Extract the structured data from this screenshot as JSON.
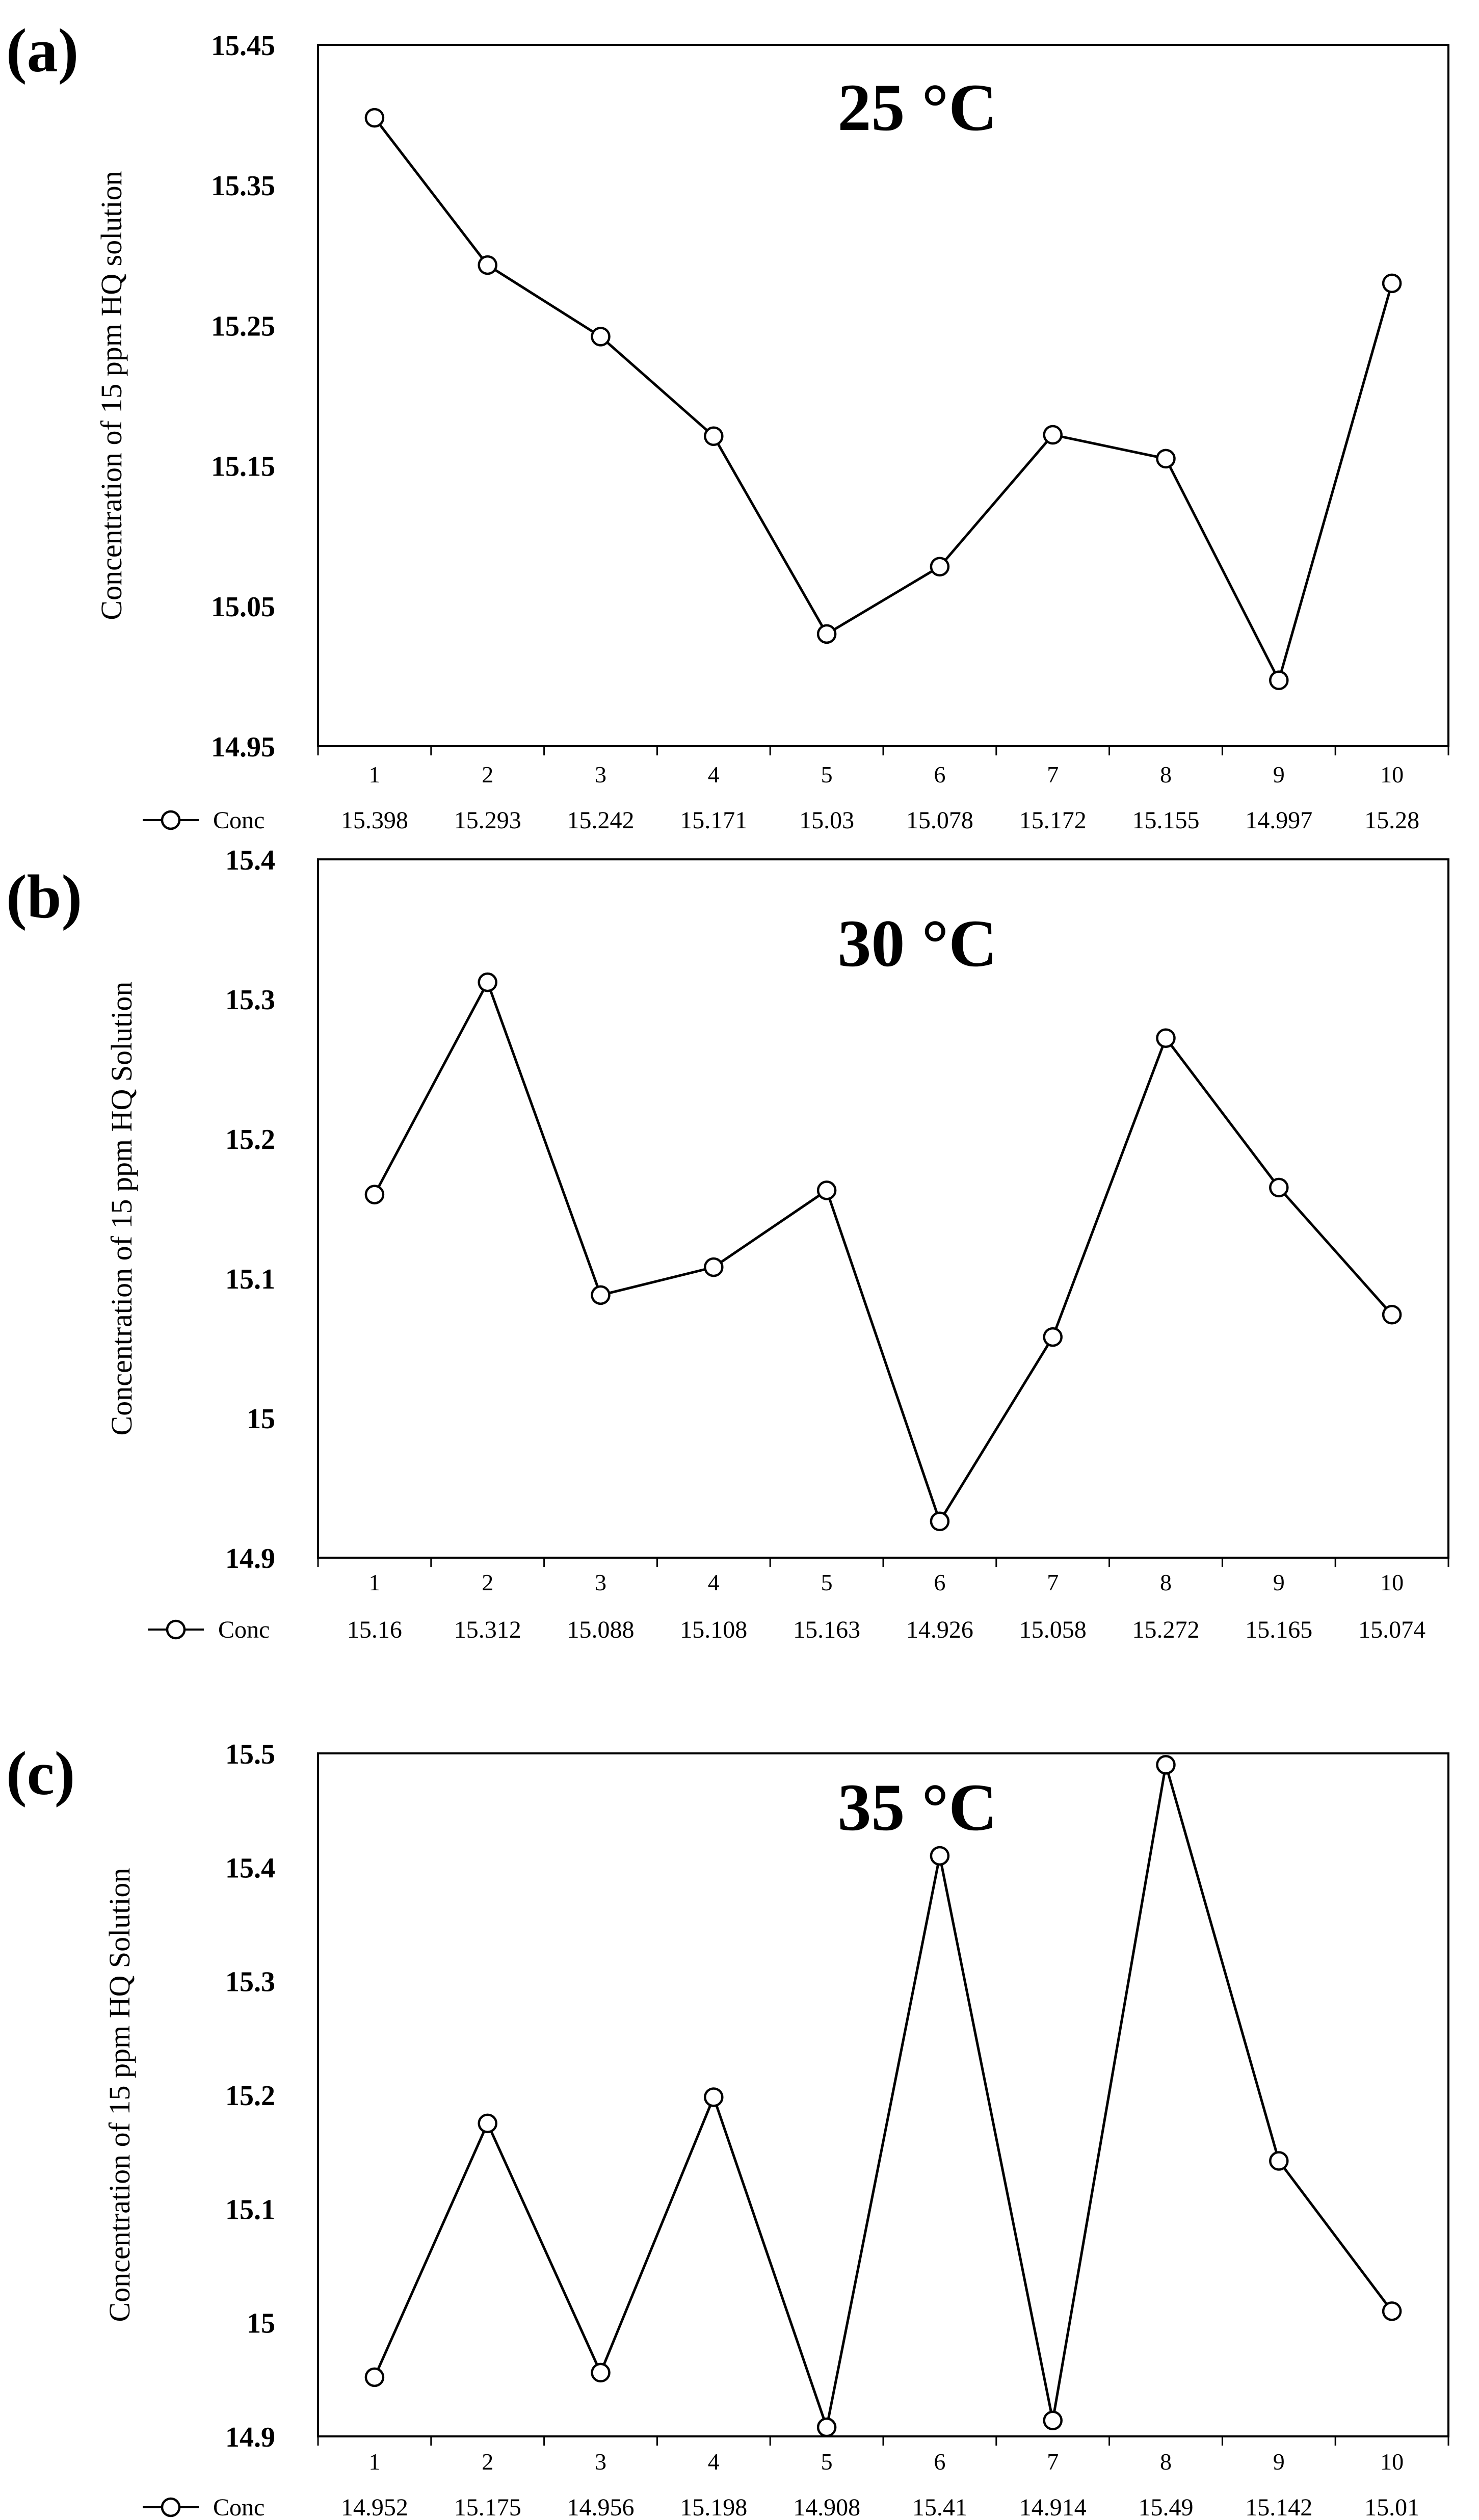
{
  "chart_data": [
    {
      "type": "line",
      "panel_label": "(a)",
      "title": "25 °C",
      "ylabel": "Concentration of 15 ppm HQ solution",
      "xlabel": "",
      "ylim": [
        14.95,
        15.45
      ],
      "yticks": [
        "14.95",
        "15.05",
        "15.15",
        "15.25",
        "15.35",
        "15.45"
      ],
      "categories": [
        "1",
        "2",
        "3",
        "4",
        "5",
        "6",
        "7",
        "8",
        "9",
        "10"
      ],
      "series": [
        {
          "name": "Conc",
          "values": [
            15.398,
            15.293,
            15.242,
            15.171,
            15.03,
            15.078,
            15.172,
            15.155,
            14.997,
            15.28
          ]
        }
      ],
      "table_values": [
        "15.398",
        "15.293",
        "15.242",
        "15.171",
        "15.03",
        "15.078",
        "15.172",
        "15.155",
        "14.997",
        "15.28"
      ],
      "legend": "data-table-row",
      "grid": false
    },
    {
      "type": "line",
      "panel_label": "(b)",
      "title": "30 °C",
      "ylabel": "Concentration of 15 ppm HQ Solution",
      "xlabel": "",
      "ylim": [
        14.9,
        15.4
      ],
      "yticks": [
        "14.9",
        "15",
        "15.1",
        "15.2",
        "15.3",
        "15.4"
      ],
      "categories": [
        "1",
        "2",
        "3",
        "4",
        "5",
        "6",
        "7",
        "8",
        "9",
        "10"
      ],
      "series": [
        {
          "name": "Conc",
          "values": [
            15.16,
            15.312,
            15.088,
            15.108,
            15.163,
            14.926,
            15.058,
            15.272,
            15.165,
            15.074
          ]
        }
      ],
      "table_values": [
        "15.16",
        "15.312",
        "15.088",
        "15.108",
        "15.163",
        "14.926",
        "15.058",
        "15.272",
        "15.165",
        "15.074"
      ],
      "legend": "data-table-row",
      "grid": false
    },
    {
      "type": "line",
      "panel_label": "(c)",
      "title": "35 °C",
      "ylabel": "Concentration of 15 ppm HQ Solution",
      "xlabel": "",
      "ylim": [
        14.9,
        15.5
      ],
      "yticks": [
        "14.9",
        "15",
        "15.1",
        "15.2",
        "15.3",
        "15.4",
        "15.5"
      ],
      "categories": [
        "1",
        "2",
        "3",
        "4",
        "5",
        "6",
        "7",
        "8",
        "9",
        "10"
      ],
      "series": [
        {
          "name": "Conc",
          "values": [
            14.952,
            15.175,
            14.956,
            15.198,
            14.908,
            15.41,
            14.914,
            15.49,
            15.142,
            15.01
          ]
        }
      ],
      "table_values": [
        "14.952",
        "15.175",
        "14.956",
        "15.198",
        "14.908",
        "15.41",
        "14.914",
        "15.49",
        "15.142",
        "15.01"
      ],
      "legend": "data-table-row",
      "grid": false
    }
  ]
}
